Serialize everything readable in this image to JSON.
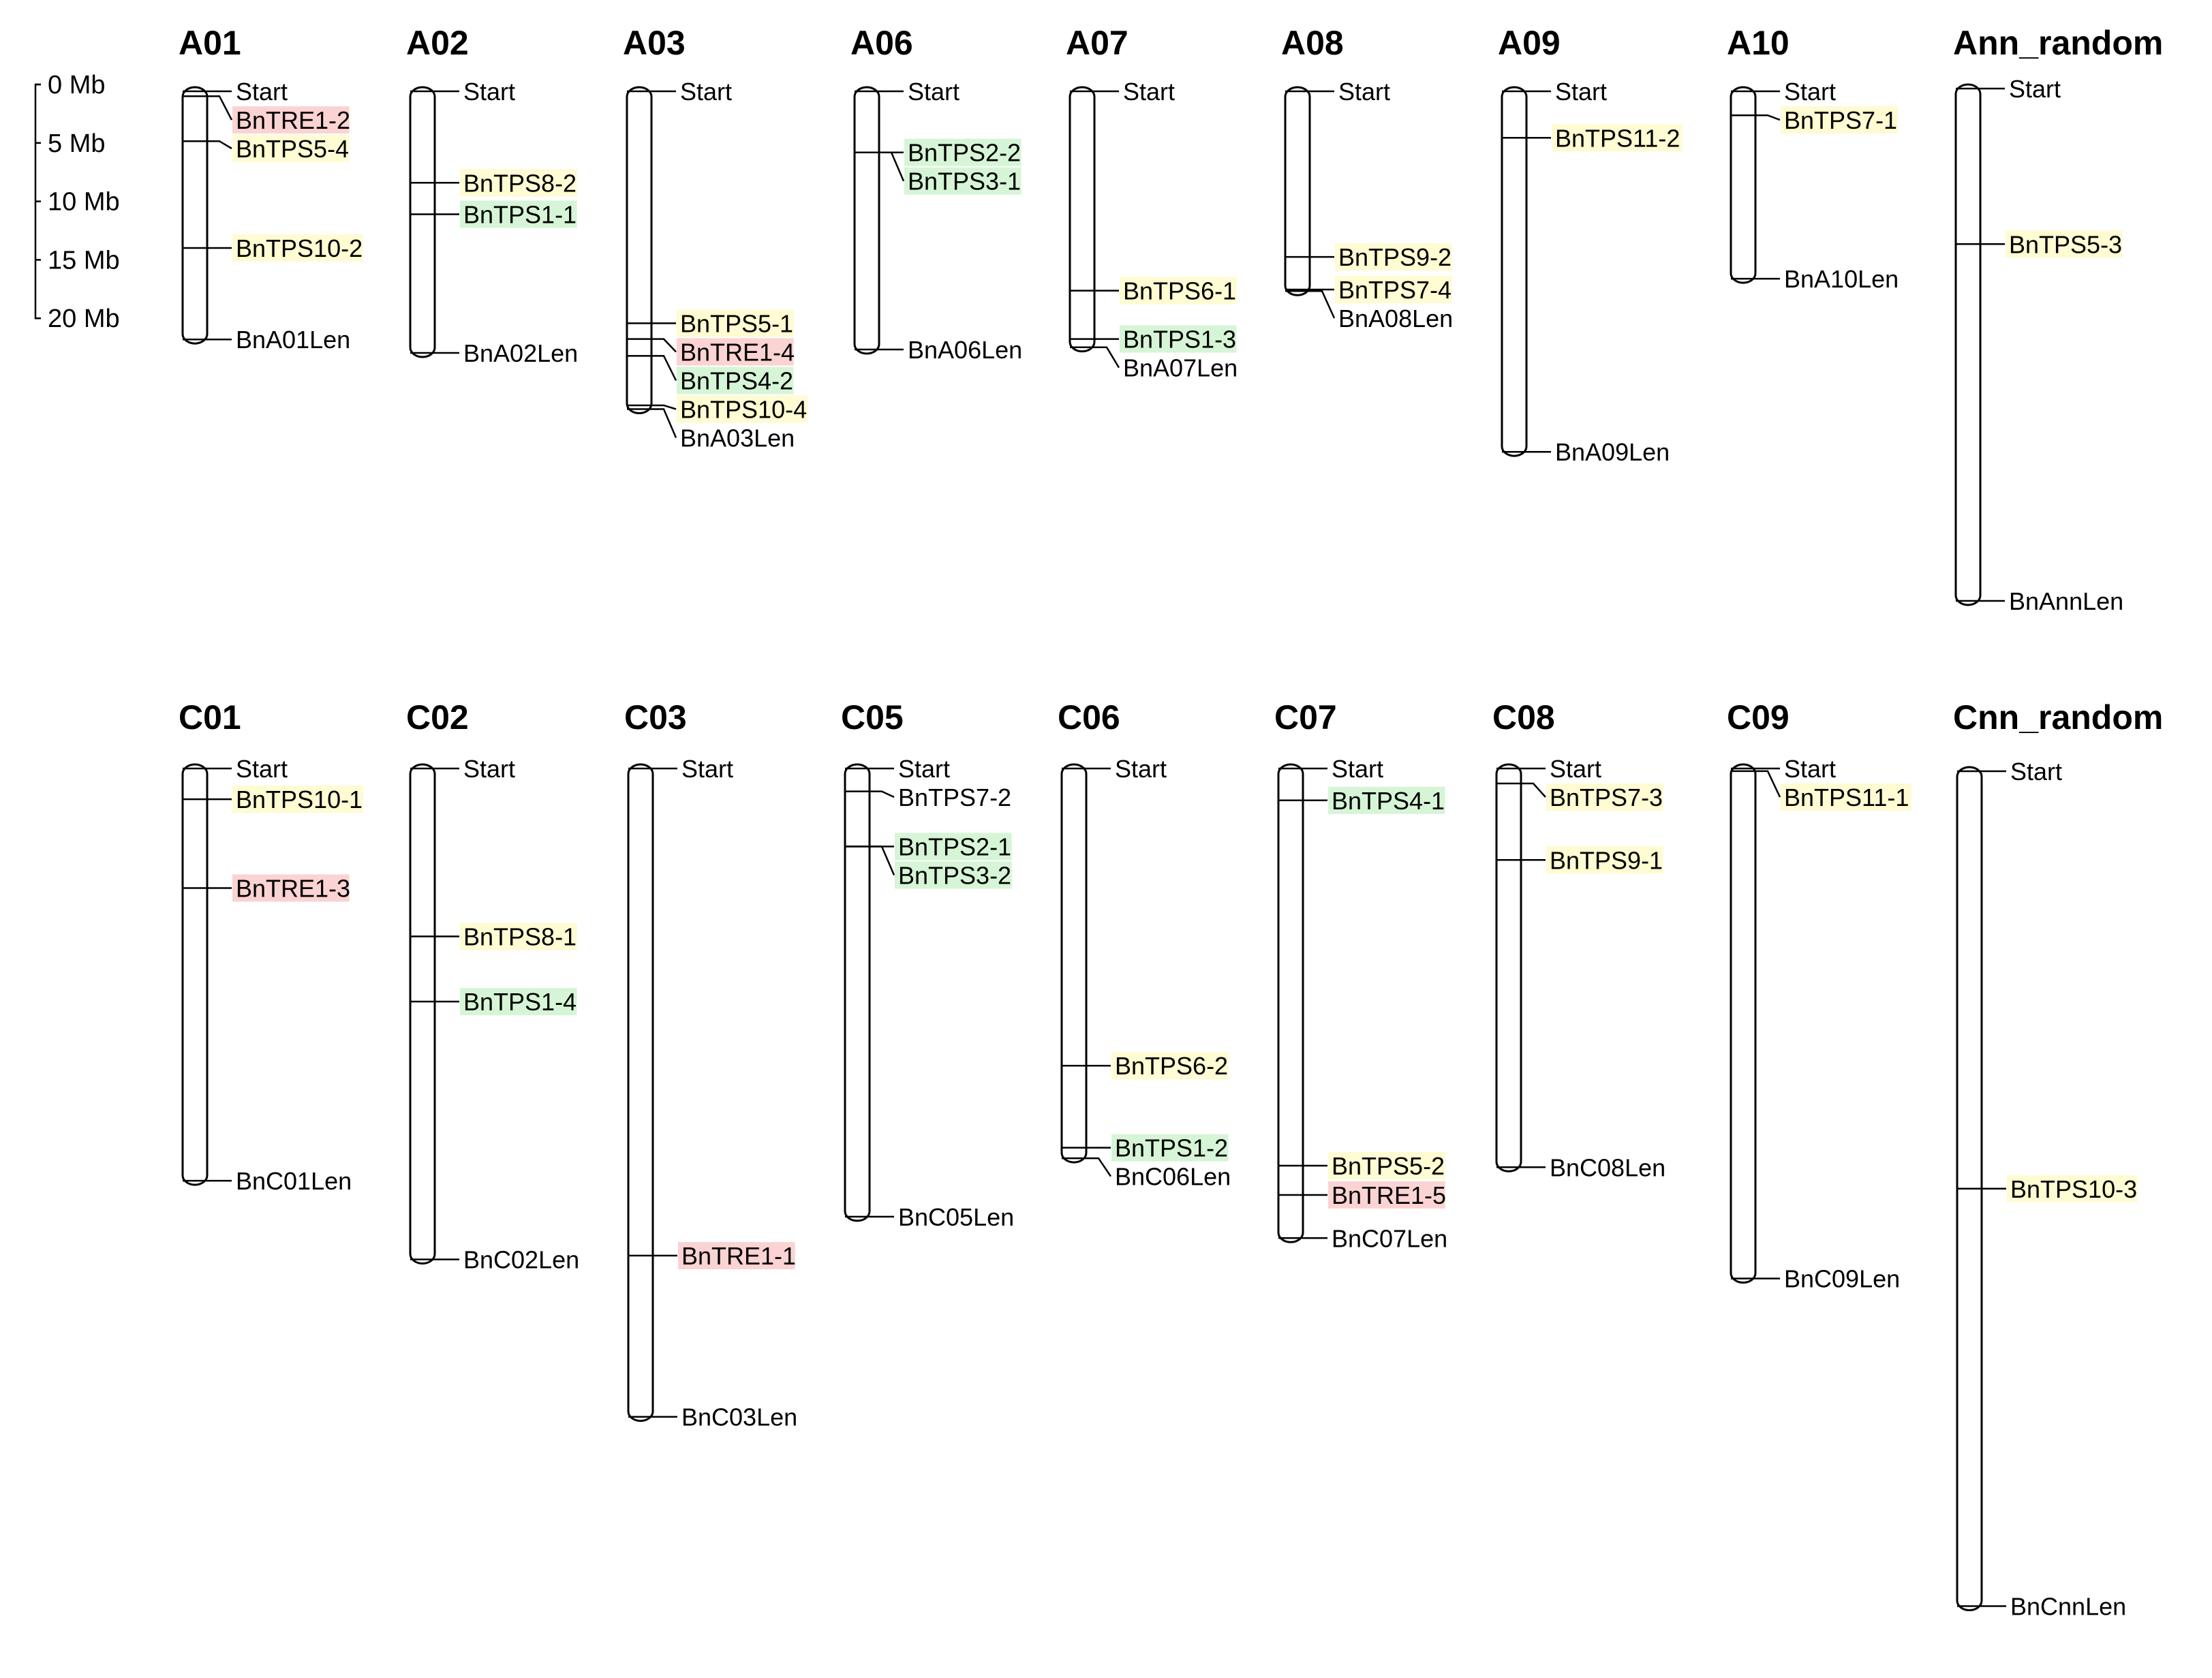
{
  "colors": {
    "yellow": "#fffbd2",
    "green": "#d6f5d6",
    "red": "#fbd3d3"
  },
  "scale": {
    "labels": [
      "0 Mb",
      "5 Mb",
      "10 Mb",
      "15 Mb",
      "20 Mb"
    ],
    "mb": [
      0,
      5,
      10,
      15,
      20
    ]
  },
  "chart_data": {
    "type": "chromosome-map",
    "units": "Mb",
    "chromosomes": [
      {
        "name": "A01",
        "length": 22.8,
        "start_label": "Start",
        "end_label": "BnA01Len",
        "genes": [
          {
            "name": "BnTRE1-2",
            "pos": 0.8,
            "color": "red"
          },
          {
            "name": "BnTPS5-4",
            "pos": 4.8,
            "color": "yellow"
          },
          {
            "name": "BnTPS10-2",
            "pos": 14.3,
            "color": "yellow"
          }
        ]
      },
      {
        "name": "A02",
        "length": 24.0,
        "start_label": "Start",
        "end_label": "BnA02Len",
        "genes": [
          {
            "name": "BnTPS8-2",
            "pos": 8.5,
            "color": "yellow"
          },
          {
            "name": "BnTPS1-1",
            "pos": 11.3,
            "color": "green"
          }
        ]
      },
      {
        "name": "A03",
        "length": 29.0,
        "start_label": "Start",
        "end_label": "BnA03Len",
        "genes": [
          {
            "name": "BnTPS5-1",
            "pos": 21.0,
            "color": "yellow"
          },
          {
            "name": "BnTRE1-4",
            "pos": 22.4,
            "color": "red"
          },
          {
            "name": "BnTPS4-2",
            "pos": 23.9,
            "color": "green"
          },
          {
            "name": "BnTPS10-4",
            "pos": 28.3,
            "color": "yellow"
          }
        ]
      },
      {
        "name": "A06",
        "length": 23.7,
        "start_label": "Start",
        "end_label": "BnA06Len",
        "genes": [
          {
            "name": "BnTPS2-2",
            "pos": 5.8,
            "color": "green"
          },
          {
            "name": "BnTPS3-1",
            "pos": 5.8,
            "color": "green"
          }
        ]
      },
      {
        "name": "A07",
        "length": 23.5,
        "start_label": "Start",
        "end_label": "BnA07Len",
        "genes": [
          {
            "name": "BnTPS6-1",
            "pos": 18.1,
            "color": "yellow"
          },
          {
            "name": "BnTPS1-3",
            "pos": 22.4,
            "color": "green"
          }
        ]
      },
      {
        "name": "A08",
        "length": 18.5,
        "start_label": "Start",
        "end_label": "BnA08Len",
        "genes": [
          {
            "name": "BnTPS9-2",
            "pos": 15.1,
            "color": "yellow"
          },
          {
            "name": "BnTPS7-4",
            "pos": 18.0,
            "color": "yellow"
          }
        ]
      },
      {
        "name": "A09",
        "length": 32.8,
        "start_label": "Start",
        "end_label": "BnA09Len",
        "genes": [
          {
            "name": "BnTPS11-2",
            "pos": 4.5,
            "color": "yellow"
          }
        ]
      },
      {
        "name": "A10",
        "length": 17.4,
        "start_label": "Start",
        "end_label": "BnA10Len",
        "genes": [
          {
            "name": "BnTPS7-1",
            "pos": 2.5,
            "color": "yellow"
          }
        ]
      },
      {
        "name": "Ann_random",
        "length": 46.3,
        "start_label": "Start",
        "end_label": "BnAnnLen",
        "genes": [
          {
            "name": "BnTPS5-3",
            "pos": 14.2,
            "color": "yellow"
          }
        ]
      },
      {
        "name": "C01",
        "length": 37.4,
        "start_label": "Start",
        "end_label": "BnC01Len",
        "genes": [
          {
            "name": "BnTPS10-1",
            "pos": 3.1,
            "color": "yellow"
          },
          {
            "name": "BnTRE1-3",
            "pos": 11.0,
            "color": "red"
          }
        ]
      },
      {
        "name": "C02",
        "length": 44.4,
        "start_label": "Start",
        "end_label": "BnC02Len",
        "genes": [
          {
            "name": "BnTPS8-1",
            "pos": 15.3,
            "color": "yellow"
          },
          {
            "name": "BnTPS1-4",
            "pos": 21.1,
            "color": "green"
          }
        ]
      },
      {
        "name": "C03",
        "length": 58.4,
        "start_label": "Start",
        "end_label": "BnC03Len",
        "genes": [
          {
            "name": "BnTRE1-1",
            "pos": 43.7,
            "color": "red"
          }
        ]
      },
      {
        "name": "C05",
        "length": 40.6,
        "start_label": "Start",
        "end_label": "BnC05Len",
        "genes": [
          {
            "name": "BnTPS7-2",
            "pos": 2.4,
            "color": "none"
          },
          {
            "name": "BnTPS2-1",
            "pos": 7.3,
            "color": "green"
          },
          {
            "name": "BnTPS3-2",
            "pos": 7.3,
            "color": "green"
          }
        ]
      },
      {
        "name": "C06",
        "length": 35.4,
        "start_label": "Start",
        "end_label": "BnC06Len",
        "genes": [
          {
            "name": "BnTPS6-2",
            "pos": 26.8,
            "color": "yellow"
          },
          {
            "name": "BnTPS1-2",
            "pos": 34.1,
            "color": "green"
          }
        ]
      },
      {
        "name": "C07",
        "length": 42.5,
        "start_label": "Start",
        "end_label": "BnC07Len",
        "genes": [
          {
            "name": "BnTPS4-1",
            "pos": 3.2,
            "color": "green"
          },
          {
            "name": "BnTPS5-2",
            "pos": 35.7,
            "color": "yellow"
          },
          {
            "name": "BnTRE1-5",
            "pos": 38.3,
            "color": "red"
          }
        ]
      },
      {
        "name": "C08",
        "length": 36.2,
        "start_label": "Start",
        "end_label": "BnC08Len",
        "genes": [
          {
            "name": "BnTPS7-3",
            "pos": 1.7,
            "color": "yellow"
          },
          {
            "name": "BnTPS9-1",
            "pos": 8.5,
            "color": "yellow"
          }
        ]
      },
      {
        "name": "C09",
        "length": 46.1,
        "start_label": "Start",
        "end_label": "BnC09Len",
        "genes": [
          {
            "name": "BnTPS11-1",
            "pos": 0.6,
            "color": "yellow"
          }
        ]
      },
      {
        "name": "Cnn_random",
        "length": 75.0,
        "start_label": "Start",
        "end_label": "BnCnnLen",
        "genes": [
          {
            "name": "BnTPS10-3",
            "pos": 37.5,
            "color": "yellow"
          }
        ]
      }
    ]
  }
}
